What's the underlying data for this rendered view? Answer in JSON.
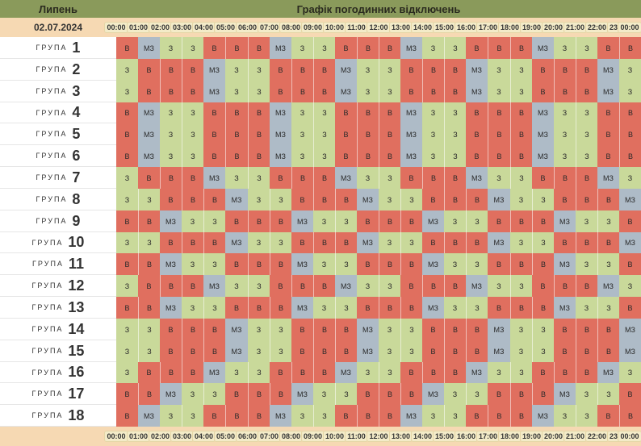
{
  "header": {
    "month": "Липень",
    "title": "Графік погодинних відключень",
    "date": "02.07.2024"
  },
  "group_word": "ГРУПА",
  "times": [
    "00:00",
    "01:00",
    "02:00",
    "03:00",
    "04:00",
    "05:00",
    "06:00",
    "07:00",
    "08:00",
    "09:00",
    "10:00",
    "11:00",
    "12:00",
    "13:00",
    "14:00",
    "15:00",
    "16:00",
    "17:00",
    "18:00",
    "19:00",
    "20:00",
    "21:00",
    "22:00",
    "23:00",
    "00:00"
  ],
  "colors": {
    "В": "#e06f5f",
    "З": "#c9d99a",
    "МЗ": "#aebbc7"
  },
  "rows": [
    [
      "В",
      "МЗ",
      "З",
      "З",
      "В",
      "В",
      "В",
      "МЗ",
      "З",
      "З",
      "В",
      "В",
      "В",
      "МЗ",
      "З",
      "З",
      "В",
      "В",
      "В",
      "МЗ",
      "З",
      "З",
      "В",
      "В"
    ],
    [
      "З",
      "В",
      "В",
      "В",
      "МЗ",
      "З",
      "З",
      "В",
      "В",
      "В",
      "МЗ",
      "З",
      "З",
      "В",
      "В",
      "В",
      "МЗ",
      "З",
      "З",
      "В",
      "В",
      "В",
      "МЗ",
      "З"
    ],
    [
      "З",
      "В",
      "В",
      "В",
      "МЗ",
      "З",
      "З",
      "В",
      "В",
      "В",
      "МЗ",
      "З",
      "З",
      "В",
      "В",
      "В",
      "МЗ",
      "З",
      "З",
      "В",
      "В",
      "В",
      "МЗ",
      "З"
    ],
    [
      "В",
      "МЗ",
      "З",
      "З",
      "В",
      "В",
      "В",
      "МЗ",
      "З",
      "З",
      "В",
      "В",
      "В",
      "МЗ",
      "З",
      "З",
      "В",
      "В",
      "В",
      "МЗ",
      "З",
      "З",
      "В",
      "В"
    ],
    [
      "В",
      "МЗ",
      "З",
      "З",
      "В",
      "В",
      "В",
      "МЗ",
      "З",
      "З",
      "В",
      "В",
      "В",
      "МЗ",
      "З",
      "З",
      "В",
      "В",
      "В",
      "МЗ",
      "З",
      "З",
      "В",
      "В"
    ],
    [
      "В",
      "МЗ",
      "З",
      "З",
      "В",
      "В",
      "В",
      "МЗ",
      "З",
      "З",
      "В",
      "В",
      "В",
      "МЗ",
      "З",
      "З",
      "В",
      "В",
      "В",
      "МЗ",
      "З",
      "З",
      "В",
      "В"
    ],
    [
      "З",
      "В",
      "В",
      "В",
      "МЗ",
      "З",
      "З",
      "В",
      "В",
      "В",
      "МЗ",
      "З",
      "З",
      "В",
      "В",
      "В",
      "МЗ",
      "З",
      "З",
      "В",
      "В",
      "В",
      "МЗ",
      "З"
    ],
    [
      "З",
      "З",
      "В",
      "В",
      "В",
      "МЗ",
      "З",
      "З",
      "В",
      "В",
      "В",
      "МЗ",
      "З",
      "З",
      "В",
      "В",
      "В",
      "МЗ",
      "З",
      "З",
      "В",
      "В",
      "В",
      "МЗ"
    ],
    [
      "В",
      "В",
      "МЗ",
      "З",
      "З",
      "В",
      "В",
      "В",
      "МЗ",
      "З",
      "З",
      "В",
      "В",
      "В",
      "МЗ",
      "З",
      "З",
      "В",
      "В",
      "В",
      "МЗ",
      "З",
      "З",
      "В"
    ],
    [
      "З",
      "З",
      "В",
      "В",
      "В",
      "МЗ",
      "З",
      "З",
      "В",
      "В",
      "В",
      "МЗ",
      "З",
      "З",
      "В",
      "В",
      "В",
      "МЗ",
      "З",
      "З",
      "В",
      "В",
      "В",
      "МЗ"
    ],
    [
      "В",
      "В",
      "МЗ",
      "З",
      "З",
      "В",
      "В",
      "В",
      "МЗ",
      "З",
      "З",
      "В",
      "В",
      "В",
      "МЗ",
      "З",
      "З",
      "В",
      "В",
      "В",
      "МЗ",
      "З",
      "З",
      "В"
    ],
    [
      "З",
      "В",
      "В",
      "В",
      "МЗ",
      "З",
      "З",
      "В",
      "В",
      "В",
      "МЗ",
      "З",
      "З",
      "В",
      "В",
      "В",
      "МЗ",
      "З",
      "З",
      "В",
      "В",
      "В",
      "МЗ",
      "З"
    ],
    [
      "В",
      "В",
      "МЗ",
      "З",
      "З",
      "В",
      "В",
      "В",
      "МЗ",
      "З",
      "З",
      "В",
      "В",
      "В",
      "МЗ",
      "З",
      "З",
      "В",
      "В",
      "В",
      "МЗ",
      "З",
      "З",
      "В"
    ],
    [
      "З",
      "З",
      "В",
      "В",
      "В",
      "МЗ",
      "З",
      "З",
      "В",
      "В",
      "В",
      "МЗ",
      "З",
      "З",
      "В",
      "В",
      "В",
      "МЗ",
      "З",
      "З",
      "В",
      "В",
      "В",
      "МЗ"
    ],
    [
      "З",
      "З",
      "В",
      "В",
      "В",
      "МЗ",
      "З",
      "З",
      "В",
      "В",
      "В",
      "МЗ",
      "З",
      "З",
      "В",
      "В",
      "В",
      "МЗ",
      "З",
      "З",
      "В",
      "В",
      "В",
      "МЗ"
    ],
    [
      "З",
      "В",
      "В",
      "В",
      "МЗ",
      "З",
      "З",
      "В",
      "В",
      "В",
      "МЗ",
      "З",
      "З",
      "В",
      "В",
      "В",
      "МЗ",
      "З",
      "З",
      "В",
      "В",
      "В",
      "МЗ",
      "З"
    ],
    [
      "В",
      "В",
      "МЗ",
      "З",
      "З",
      "В",
      "В",
      "В",
      "МЗ",
      "З",
      "З",
      "В",
      "В",
      "В",
      "МЗ",
      "З",
      "З",
      "В",
      "В",
      "В",
      "МЗ",
      "З",
      "З",
      "В"
    ],
    [
      "В",
      "МЗ",
      "З",
      "З",
      "В",
      "В",
      "В",
      "МЗ",
      "З",
      "З",
      "В",
      "В",
      "В",
      "МЗ",
      "З",
      "З",
      "В",
      "В",
      "В",
      "МЗ",
      "З",
      "З",
      "В",
      "В"
    ]
  ]
}
